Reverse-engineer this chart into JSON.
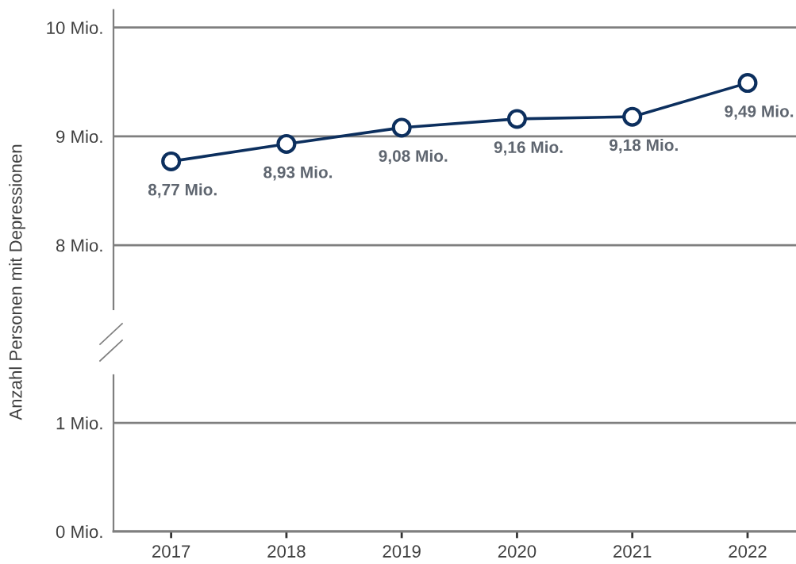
{
  "chart_data": [
    {
      "type": "line",
      "ylabel": "Anzahl Personen mit Depressionen",
      "categories": [
        "2017",
        "2018",
        "2019",
        "2020",
        "2021",
        "2022"
      ],
      "values": [
        8.77,
        8.93,
        9.08,
        9.16,
        9.18,
        9.49
      ],
      "color": "#0c2f5e",
      "value_labels": [
        "8,77 Mio.",
        "8,93 Mio.",
        "9,08 Mio.",
        "9,16 Mio.",
        "9,18 Mio.",
        "9,49 Mio."
      ],
      "ylim": [
        7.41,
        10.16
      ],
      "yticks": [
        {
          "value": 8,
          "label": "8 Mio."
        },
        {
          "value": 9,
          "label": "9 Mio."
        },
        {
          "value": 10,
          "label": "10 Mio."
        }
      ],
      "grid": "y",
      "marker": "circle",
      "line_style": "solid",
      "tick_labels": "y"
    },
    {
      "type": "line",
      "categories": [
        "2017",
        "2018",
        "2019",
        "2020",
        "2021",
        "2022"
      ],
      "values": [
        null,
        null,
        null,
        null,
        null,
        null
      ],
      "color": "#0c2f5e",
      "ylim": [
        0,
        1.44
      ],
      "yticks": [
        {
          "value": 0,
          "label": "0 Mio."
        },
        {
          "value": 1,
          "label": "1 Mio."
        }
      ],
      "grid": "y"
    }
  ]
}
